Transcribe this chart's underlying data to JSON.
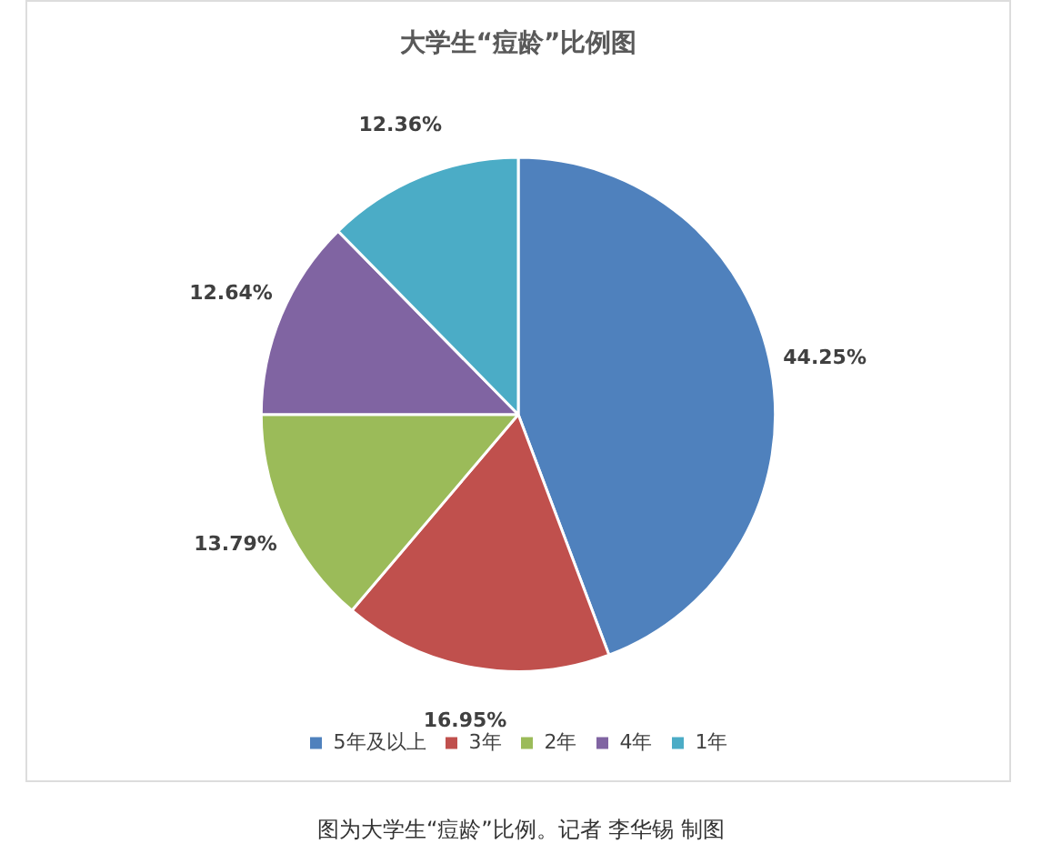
{
  "chart_data": {
    "type": "pie",
    "title": "大学生“痘龄”比例图",
    "categories": [
      "5年及以上",
      "3年",
      "2年",
      "4年",
      "1年"
    ],
    "values": [
      44.25,
      16.95,
      13.79,
      12.64,
      12.36
    ],
    "value_labels": [
      "44.25%",
      "16.95%",
      "13.79%",
      "12.64%",
      "12.36%"
    ],
    "colors": [
      "#4f81bd",
      "#c0504d",
      "#9bbb59",
      "#8064a2",
      "#4bacc6"
    ],
    "legend": "bottom",
    "annotations": [
      "图为大学生“痘龄”比例。记者 李华锡 制图"
    ]
  }
}
